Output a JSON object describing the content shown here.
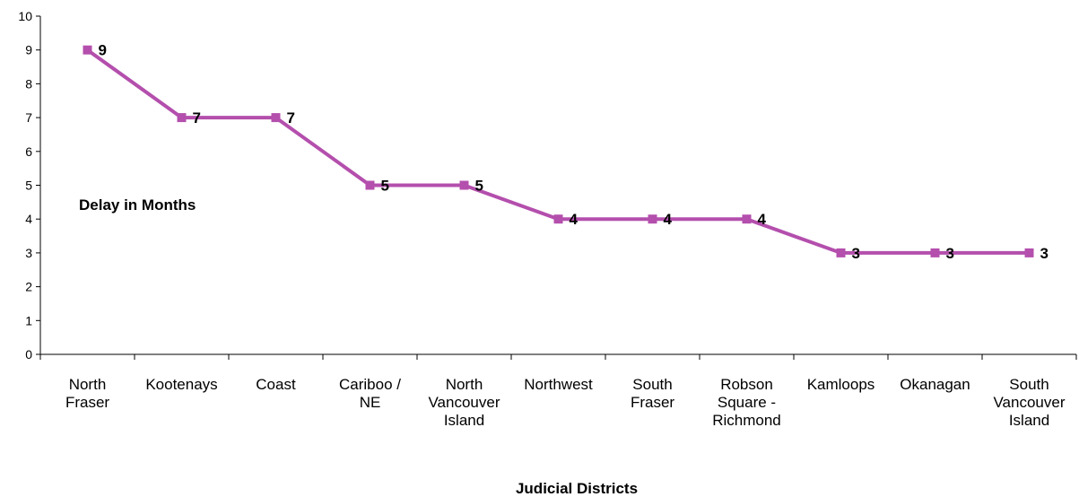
{
  "chart_data": {
    "type": "line",
    "title": "",
    "xlabel": "Judicial Districts",
    "ylabel": "",
    "ylim": [
      0,
      10
    ],
    "yticks": [
      0,
      1,
      2,
      3,
      4,
      5,
      6,
      7,
      8,
      9,
      10
    ],
    "grid": false,
    "categories": [
      [
        "North",
        "Fraser"
      ],
      [
        "Kootenays"
      ],
      [
        "Coast"
      ],
      [
        "Cariboo /",
        "NE"
      ],
      [
        "North",
        "Vancouver",
        "Island"
      ],
      [
        "Northwest"
      ],
      [
        "South",
        "Fraser"
      ],
      [
        "Robson",
        "Square -",
        "Richmond"
      ],
      [
        "Kamloops"
      ],
      [
        "Okanagan"
      ],
      [
        "South",
        "Vancouver",
        "Island"
      ]
    ],
    "series": [
      {
        "name": "Delay in Months",
        "color": "#b44fad",
        "values": [
          9,
          7,
          7,
          5,
          5,
          4,
          4,
          4,
          3,
          3,
          3
        ],
        "data_labels": [
          "9",
          "7",
          "7",
          "5",
          "5",
          "4",
          "4",
          "4",
          "3",
          "3",
          "3"
        ]
      }
    ]
  }
}
